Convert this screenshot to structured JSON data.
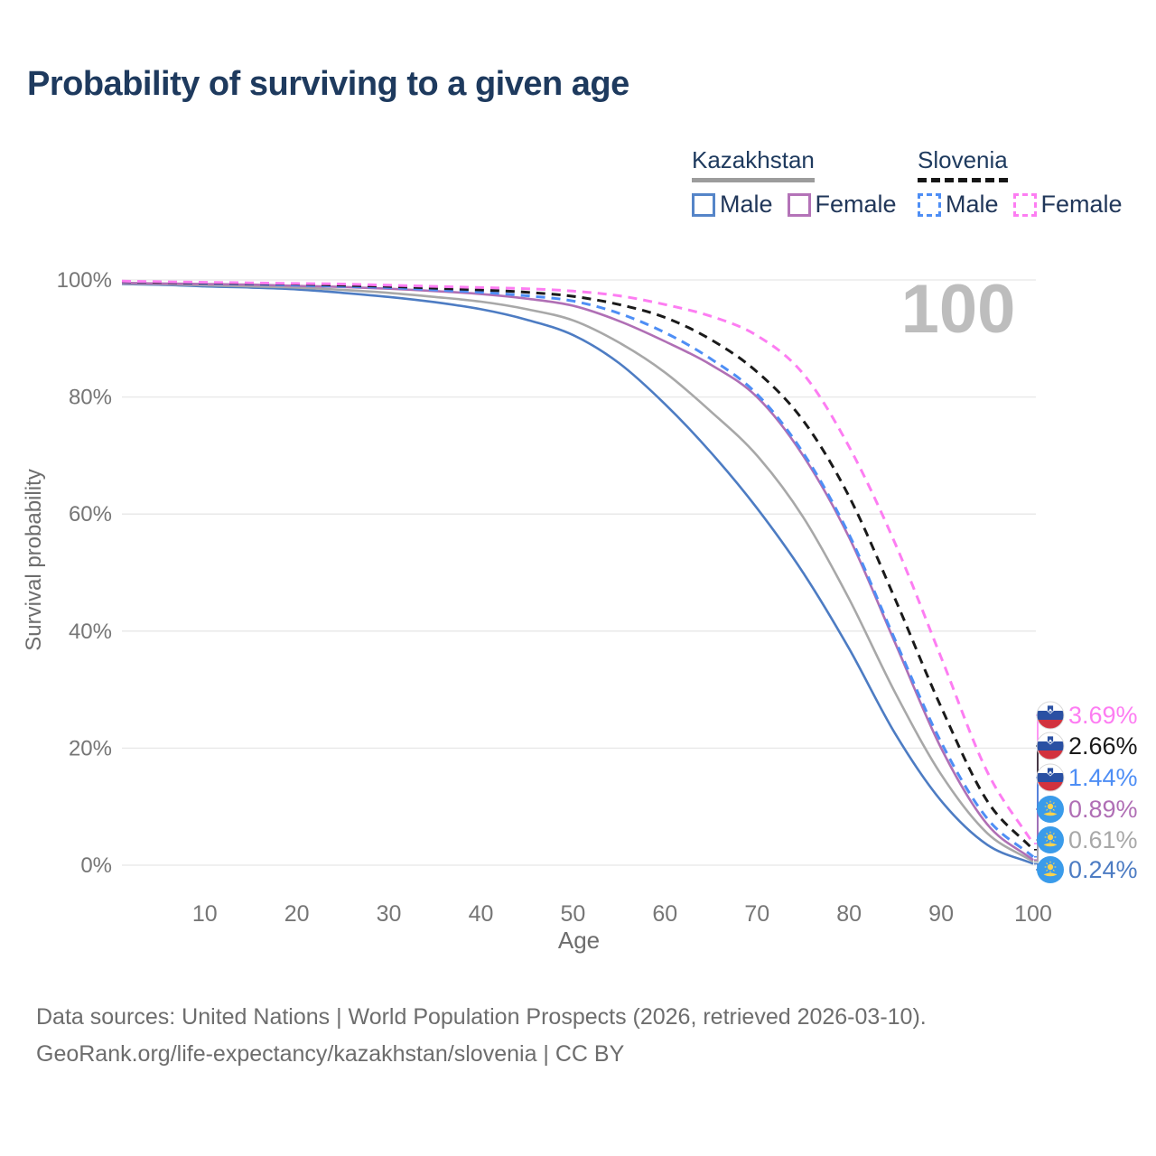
{
  "title": "Probability of surviving to a given age",
  "legend": {
    "groups": [
      {
        "country": "Kazakhstan",
        "line_style": "solid",
        "underline_color": "#9c9c9c",
        "items": [
          {
            "label": "Male",
            "color": "#5585c8"
          },
          {
            "label": "Female",
            "color": "#b473b8"
          }
        ]
      },
      {
        "country": "Slovenia",
        "line_style": "dashed",
        "underline_color": "#161616",
        "items": [
          {
            "label": "Male",
            "color": "#4e8ef5"
          },
          {
            "label": "Female",
            "color": "#fd7df2"
          }
        ]
      }
    ]
  },
  "chart_data": {
    "type": "line",
    "title": "Probability of surviving to a given age",
    "xlabel": "Age",
    "ylabel": "Survival probability",
    "xlim": [
      1,
      100
    ],
    "ylim": [
      0,
      100
    ],
    "grid": "horizontal",
    "x_ticks": [
      10,
      20,
      30,
      40,
      50,
      60,
      70,
      80,
      90,
      100
    ],
    "y_ticks": [
      {
        "value": 0,
        "label": "0%"
      },
      {
        "value": 20,
        "label": "20%"
      },
      {
        "value": 40,
        "label": "40%"
      },
      {
        "value": 60,
        "label": "60%"
      },
      {
        "value": 80,
        "label": "80%"
      },
      {
        "value": 100,
        "label": "100%"
      }
    ],
    "hover_age_watermark": "100",
    "ages": [
      1,
      5,
      10,
      15,
      20,
      25,
      30,
      35,
      40,
      45,
      50,
      55,
      60,
      65,
      70,
      75,
      80,
      85,
      90,
      95,
      100
    ],
    "series": [
      {
        "id": "slovenia-female",
        "country": "Slovenia",
        "sex": "Female",
        "style": "dashed",
        "color": "#fd7df2",
        "flag": "slovenia",
        "end_label": "3.69%",
        "values": [
          99.8,
          99.7,
          99.6,
          99.5,
          99.4,
          99.3,
          99.1,
          98.9,
          98.7,
          98.5,
          98.1,
          97.3,
          95.8,
          93.8,
          90.5,
          84.0,
          71.5,
          55.0,
          35.5,
          16.0,
          3.69
        ]
      },
      {
        "id": "slovenia-both",
        "country": "Slovenia",
        "sex": "Both sexes",
        "style": "dashed",
        "color": "#1a1a1a",
        "flag": "slovenia",
        "end_label": "2.66%",
        "values": [
          99.75,
          99.6,
          99.5,
          99.4,
          99.3,
          99.1,
          98.9,
          98.6,
          98.3,
          97.9,
          97.2,
          95.8,
          93.6,
          89.8,
          84.3,
          76.0,
          63.0,
          45.5,
          27.0,
          11.0,
          2.66
        ]
      },
      {
        "id": "slovenia-male",
        "country": "Slovenia",
        "sex": "Male",
        "style": "dashed",
        "color": "#4e8ef5",
        "flag": "slovenia",
        "end_label": "1.44%",
        "values": [
          99.7,
          99.6,
          99.4,
          99.3,
          99.1,
          98.9,
          98.7,
          98.3,
          97.9,
          97.3,
          96.4,
          94.3,
          91.0,
          86.5,
          80.5,
          70.5,
          56.5,
          38.5,
          21.0,
          8.0,
          1.44
        ]
      },
      {
        "id": "kazakhstan-female",
        "country": "Kazakhstan",
        "sex": "Female",
        "style": "solid",
        "color": "#b06fb5",
        "flag": "kazakhstan",
        "end_label": "0.89%",
        "values": [
          99.5,
          99.4,
          99.3,
          99.2,
          99.0,
          98.8,
          98.5,
          98.1,
          97.6,
          96.8,
          95.6,
          93.0,
          89.5,
          85.5,
          80.0,
          70.0,
          56.0,
          38.0,
          20.0,
          7.0,
          0.89
        ]
      },
      {
        "id": "kazakhstan-both",
        "country": "Kazakhstan",
        "sex": "Both sexes",
        "style": "solid",
        "color": "#a8a8a8",
        "flag": "kazakhstan",
        "end_label": "0.61%",
        "values": [
          99.4,
          99.3,
          99.1,
          98.9,
          98.7,
          98.3,
          97.8,
          97.1,
          96.3,
          95.0,
          93.1,
          89.3,
          84.2,
          77.5,
          70.0,
          59.5,
          45.5,
          29.5,
          15.5,
          5.5,
          0.61
        ]
      },
      {
        "id": "kazakhstan-male",
        "country": "Kazakhstan",
        "sex": "Male",
        "style": "solid",
        "color": "#4d7cc3",
        "flag": "kazakhstan",
        "end_label": "0.24%",
        "values": [
          99.3,
          99.2,
          98.9,
          98.7,
          98.4,
          97.8,
          97.1,
          96.2,
          95.0,
          93.2,
          90.6,
          85.8,
          78.8,
          70.5,
          61.0,
          50.0,
          37.0,
          22.5,
          11.0,
          3.5,
          0.24
        ]
      }
    ],
    "flag_colors": {
      "slovenia": {
        "white": "#ffffff",
        "blue": "#2a50a3",
        "red": "#d2323e"
      },
      "kazakhstan": {
        "blue": "#3a9bea",
        "gold": "#fbd34d"
      }
    },
    "colors": {
      "grid": "#e7e7e7",
      "tick_text": "#767676",
      "watermark": "#bdbdbd"
    }
  },
  "footer": {
    "line1": "Data sources: United Nations | World Population Prospects (2026, retrieved 2026-03-10).",
    "line2": "GeoRank.org/life-expectancy/kazakhstan/slovenia | CC BY"
  }
}
